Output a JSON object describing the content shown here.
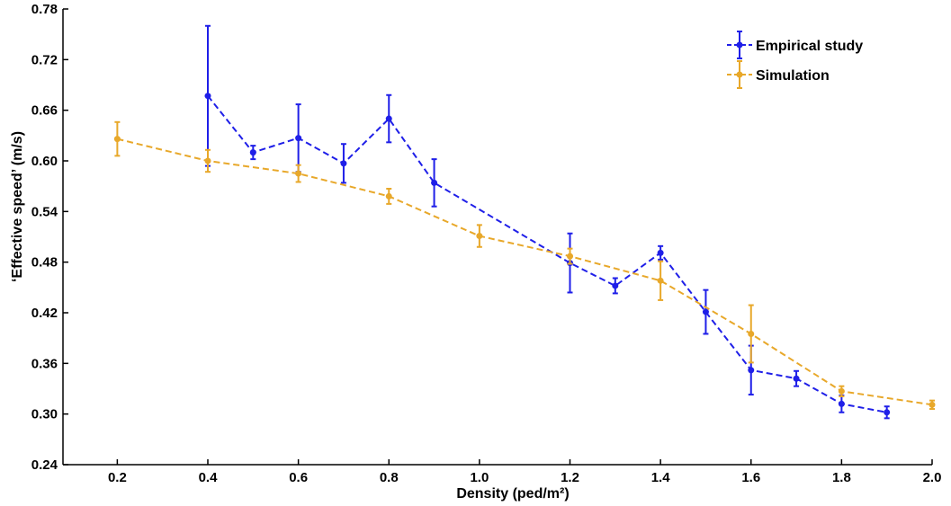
{
  "chart_data": {
    "type": "line",
    "title": "",
    "xlabel": "Density (ped/m²)",
    "ylabel": "‘Effective speed’ (m/s)",
    "xlim": [
      0.08,
      2.0
    ],
    "ylim": [
      0.24,
      0.78
    ],
    "xticks": [
      "0.2",
      "0.4",
      "0.6",
      "0.8",
      "1.0",
      "1.2",
      "1.4",
      "1.6",
      "1.8",
      "2.0"
    ],
    "yticks": [
      "0.24",
      "0.30",
      "0.36",
      "0.42",
      "0.48",
      "0.54",
      "0.60",
      "0.66",
      "0.72",
      "0.78"
    ],
    "grid": false,
    "legend_position": "top-right",
    "series": [
      {
        "name": "Empirical study",
        "color": "#1f1fe8",
        "x": [
          0.4,
          0.5,
          0.6,
          0.7,
          0.8,
          0.9,
          1.2,
          1.3,
          1.4,
          1.5,
          1.6,
          1.7,
          1.8,
          1.9
        ],
        "y": [
          0.677,
          0.61,
          0.627,
          0.597,
          0.65,
          0.574,
          0.479,
          0.452,
          0.491,
          0.421,
          0.352,
          0.342,
          0.312,
          0.302
        ],
        "err": [
          0.083,
          0.008,
          0.04,
          0.023,
          0.028,
          0.028,
          0.035,
          0.009,
          0.008,
          0.026,
          0.029,
          0.009,
          0.01,
          0.007
        ]
      },
      {
        "name": "Simulation",
        "color": "#e8a82a",
        "x": [
          0.2,
          0.4,
          0.6,
          0.8,
          1.0,
          1.2,
          1.4,
          1.6,
          1.8,
          2.0
        ],
        "y": [
          0.626,
          0.6,
          0.585,
          0.558,
          0.511,
          0.487,
          0.458,
          0.395,
          0.327,
          0.311
        ],
        "err": [
          0.02,
          0.013,
          0.01,
          0.009,
          0.013,
          0.009,
          0.023,
          0.034,
          0.006,
          0.005
        ]
      }
    ]
  }
}
